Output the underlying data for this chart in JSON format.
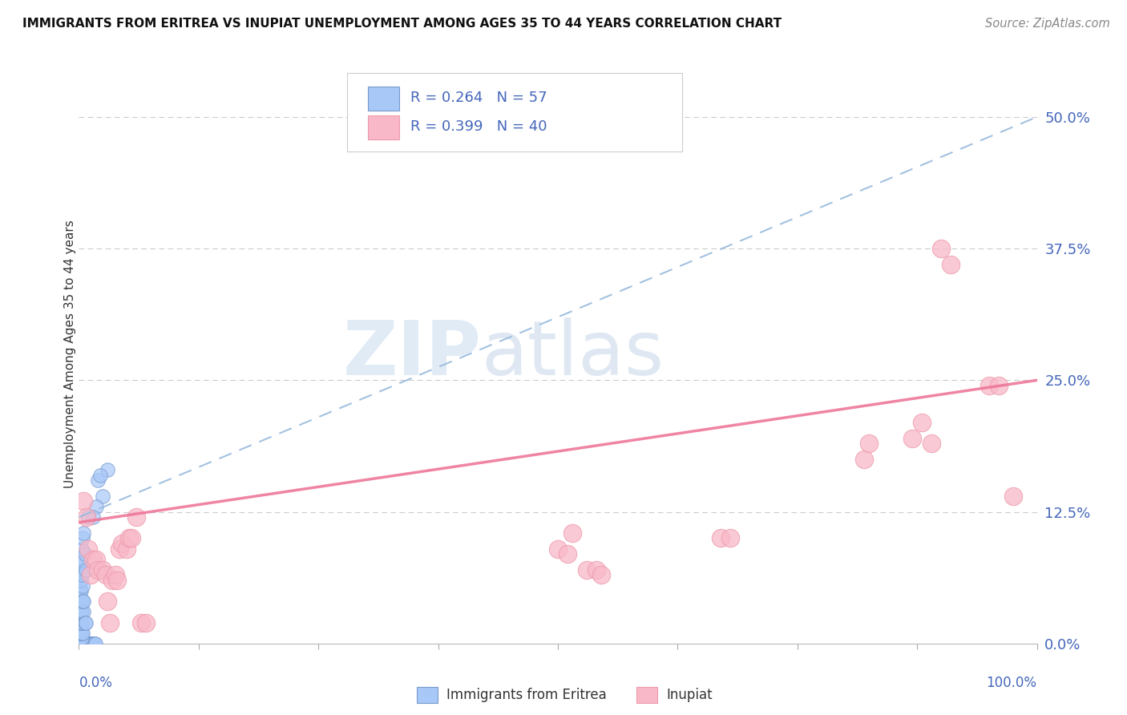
{
  "title": "IMMIGRANTS FROM ERITREA VS INUPIAT UNEMPLOYMENT AMONG AGES 35 TO 44 YEARS CORRELATION CHART",
  "source": "Source: ZipAtlas.com",
  "ylabel": "Unemployment Among Ages 35 to 44 years",
  "ytick_labels": [
    "0.0%",
    "12.5%",
    "25.0%",
    "37.5%",
    "50.0%"
  ],
  "ytick_values": [
    0.0,
    0.125,
    0.25,
    0.375,
    0.5
  ],
  "R_eritrea": 0.264,
  "N_eritrea": 57,
  "R_inupiat": 0.399,
  "N_inupiat": 40,
  "color_eritrea_fill": "#A8C8F8",
  "color_eritrea_edge": "#7799CC",
  "color_eritrea_line": "#99BBDD",
  "color_inupiat_fill": "#F8B8C8",
  "color_inupiat_edge": "#EE9AAA",
  "color_inupiat_line": "#EE7799",
  "color_tick_labels": "#4466BB",
  "xlim": [
    0.0,
    1.0
  ],
  "ylim": [
    0.0,
    0.55
  ],
  "blue_line": [
    [
      0.0,
      0.12
    ],
    [
      1.0,
      0.5
    ]
  ],
  "pink_line": [
    [
      0.0,
      0.115
    ],
    [
      1.0,
      0.25
    ]
  ],
  "blue_dots": [
    [
      0.002,
      0.0
    ],
    [
      0.003,
      0.0
    ],
    [
      0.004,
      0.0
    ],
    [
      0.005,
      0.0
    ],
    [
      0.006,
      0.0
    ],
    [
      0.007,
      0.0
    ],
    [
      0.008,
      0.0
    ],
    [
      0.009,
      0.0
    ],
    [
      0.01,
      0.0
    ],
    [
      0.011,
      0.0
    ],
    [
      0.012,
      0.0
    ],
    [
      0.013,
      0.0
    ],
    [
      0.014,
      0.0
    ],
    [
      0.015,
      0.0
    ],
    [
      0.016,
      0.0
    ],
    [
      0.017,
      0.0
    ],
    [
      0.001,
      0.005
    ],
    [
      0.002,
      0.005
    ],
    [
      0.003,
      0.005
    ],
    [
      0.001,
      0.01
    ],
    [
      0.002,
      0.01
    ],
    [
      0.003,
      0.01
    ],
    [
      0.004,
      0.01
    ],
    [
      0.001,
      0.02
    ],
    [
      0.002,
      0.02
    ],
    [
      0.003,
      0.02
    ],
    [
      0.001,
      0.03
    ],
    [
      0.002,
      0.03
    ],
    [
      0.003,
      0.03
    ],
    [
      0.001,
      0.04
    ],
    [
      0.002,
      0.04
    ],
    [
      0.001,
      0.05
    ],
    [
      0.002,
      0.05
    ],
    [
      0.001,
      0.06
    ],
    [
      0.002,
      0.06
    ],
    [
      0.001,
      0.07
    ],
    [
      0.001,
      0.075
    ],
    [
      0.005,
      0.03
    ],
    [
      0.006,
      0.02
    ],
    [
      0.007,
      0.02
    ],
    [
      0.004,
      0.04
    ],
    [
      0.005,
      0.04
    ],
    [
      0.004,
      0.055
    ],
    [
      0.003,
      0.065
    ],
    [
      0.002,
      0.08
    ],
    [
      0.003,
      0.09
    ],
    [
      0.004,
      0.1
    ],
    [
      0.005,
      0.105
    ],
    [
      0.006,
      0.085
    ],
    [
      0.007,
      0.07
    ],
    [
      0.02,
      0.155
    ],
    [
      0.025,
      0.14
    ],
    [
      0.03,
      0.165
    ],
    [
      0.022,
      0.16
    ],
    [
      0.018,
      0.13
    ],
    [
      0.015,
      0.12
    ],
    [
      0.01,
      0.12
    ]
  ],
  "pink_dots": [
    [
      0.005,
      0.135
    ],
    [
      0.008,
      0.12
    ],
    [
      0.01,
      0.09
    ],
    [
      0.012,
      0.065
    ],
    [
      0.015,
      0.08
    ],
    [
      0.018,
      0.08
    ],
    [
      0.02,
      0.07
    ],
    [
      0.025,
      0.07
    ],
    [
      0.028,
      0.065
    ],
    [
      0.03,
      0.04
    ],
    [
      0.032,
      0.02
    ],
    [
      0.035,
      0.06
    ],
    [
      0.038,
      0.065
    ],
    [
      0.04,
      0.06
    ],
    [
      0.042,
      0.09
    ],
    [
      0.045,
      0.095
    ],
    [
      0.05,
      0.09
    ],
    [
      0.052,
      0.1
    ],
    [
      0.055,
      0.1
    ],
    [
      0.06,
      0.12
    ],
    [
      0.065,
      0.02
    ],
    [
      0.07,
      0.02
    ],
    [
      0.5,
      0.09
    ],
    [
      0.51,
      0.085
    ],
    [
      0.515,
      0.105
    ],
    [
      0.53,
      0.07
    ],
    [
      0.54,
      0.07
    ],
    [
      0.545,
      0.065
    ],
    [
      0.67,
      0.1
    ],
    [
      0.68,
      0.1
    ],
    [
      0.82,
      0.175
    ],
    [
      0.825,
      0.19
    ],
    [
      0.87,
      0.195
    ],
    [
      0.88,
      0.21
    ],
    [
      0.89,
      0.19
    ],
    [
      0.9,
      0.375
    ],
    [
      0.91,
      0.36
    ],
    [
      0.95,
      0.245
    ],
    [
      0.96,
      0.245
    ],
    [
      0.975,
      0.14
    ]
  ]
}
